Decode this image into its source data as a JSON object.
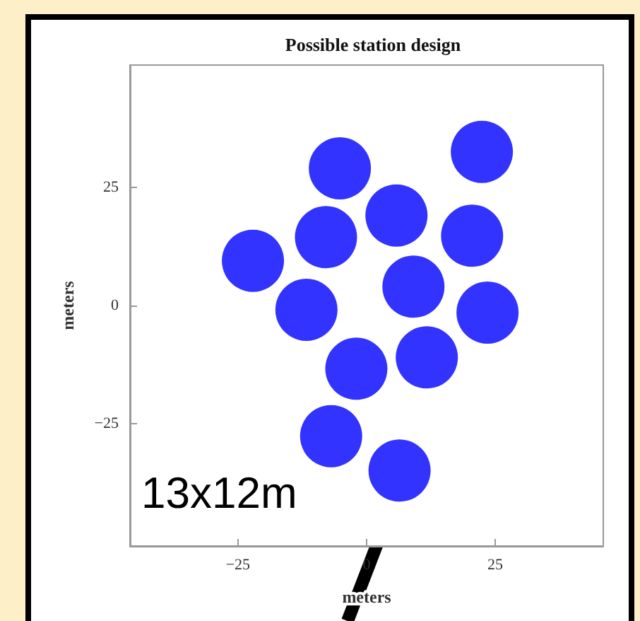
{
  "chart_data": {
    "type": "scatter",
    "title": "Possible station design",
    "xlabel": "meters",
    "ylabel": "meters",
    "x": [
      -5.2,
      22.4,
      5.8,
      -7.9,
      20.5,
      -22.1,
      9.1,
      -11.7,
      23.5,
      -2.0,
      11.7,
      -6.9,
      6.4
    ],
    "series": [
      {
        "color": "#0000ff",
        "values": [
          29.1,
          32.6,
          19.1,
          14.5,
          14.8,
          9.5,
          4.0,
          -0.9,
          -1.5,
          -13.4,
          -11.0,
          -27.7,
          -35.0
        ]
      }
    ],
    "xlim": [
      -46,
      46
    ],
    "ylim": [
      -51,
      51
    ],
    "xticks": [
      -25,
      0,
      25
    ],
    "yticks": [
      -25,
      0,
      25
    ],
    "grid": false,
    "marker": "circle",
    "annotations": [
      "13x12m"
    ]
  }
}
